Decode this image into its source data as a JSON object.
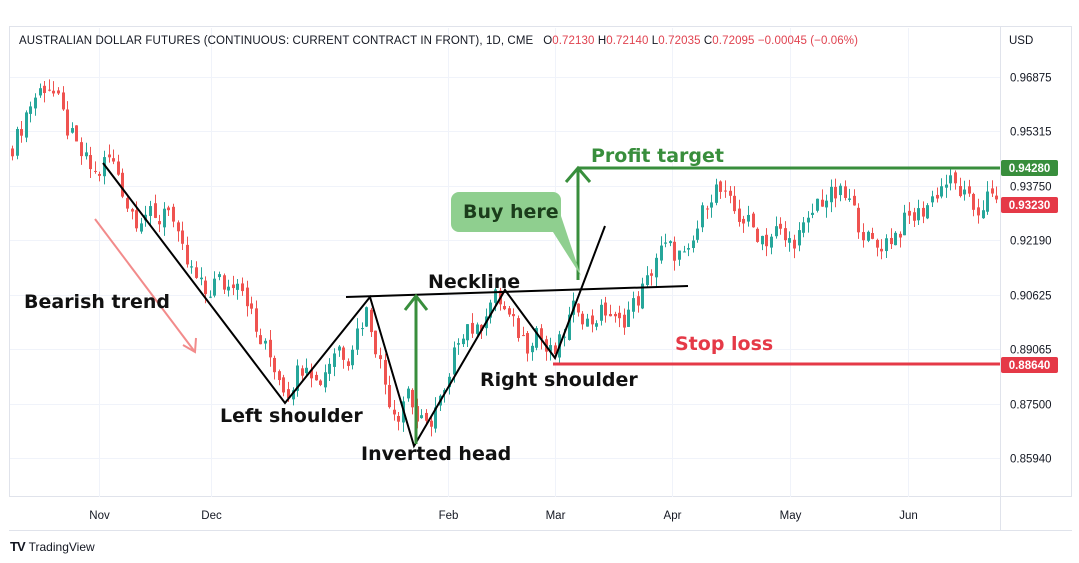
{
  "header": {
    "title": "AUSTRALIAN DOLLAR FUTURES (CONTINUOUS: CURRENT CONTRACT IN FRONT), 1D, CME",
    "o_label": "O",
    "o_value": "0.72130",
    "h_label": "H",
    "h_value": "0.72140",
    "l_label": "L",
    "l_value": "0.72035",
    "c_label": "C",
    "c_value": "0.72095",
    "change": "−0.00045 (−0.06%)",
    "currency": "USD"
  },
  "brand": {
    "logo": "TV",
    "name": "TradingView"
  },
  "colors": {
    "up": "#26a69a",
    "down": "#ef5350",
    "green": "#388e3c",
    "red": "#e53947",
    "line": "#000000",
    "bubble": "#8fcf8f",
    "arrow": "#f28b8b"
  },
  "chart_data": {
    "type": "candlestick",
    "y_axis": {
      "ticks": [
        "0.96875",
        "0.95315",
        "0.93750",
        "0.92190",
        "0.90625",
        "0.89065",
        "0.87500",
        "0.85940"
      ],
      "range": [
        0.851,
        0.9725
      ]
    },
    "x_axis": {
      "ticks": [
        "Nov",
        "Dec",
        "Feb",
        "Mar",
        "Apr",
        "May",
        "Jun"
      ]
    },
    "price_labels": [
      {
        "value": 0.9428,
        "text": "0.94280",
        "color": "green"
      },
      {
        "value": 0.9323,
        "text": "0.93230",
        "color": "red"
      },
      {
        "value": 0.8864,
        "text": "0.88640",
        "color": "red"
      }
    ],
    "close_path": [
      [
        0,
        0.938
      ],
      [
        8,
        0.947
      ],
      [
        18,
        0.952
      ],
      [
        28,
        0.96
      ],
      [
        37,
        0.964
      ],
      [
        47,
        0.967
      ],
      [
        57,
        0.962
      ],
      [
        67,
        0.954
      ],
      [
        77,
        0.948
      ],
      [
        87,
        0.944
      ],
      [
        97,
        0.94
      ],
      [
        107,
        0.946
      ],
      [
        117,
        0.942
      ],
      [
        127,
        0.932
      ],
      [
        137,
        0.928
      ],
      [
        147,
        0.93
      ],
      [
        157,
        0.926
      ],
      [
        167,
        0.934
      ],
      [
        177,
        0.922
      ],
      [
        187,
        0.915
      ],
      [
        197,
        0.91
      ],
      [
        207,
        0.906
      ],
      [
        217,
        0.911
      ],
      [
        227,
        0.908
      ],
      [
        237,
        0.912
      ],
      [
        247,
        0.905
      ],
      [
        257,
        0.894
      ],
      [
        267,
        0.89
      ],
      [
        277,
        0.884
      ],
      [
        287,
        0.878
      ],
      [
        297,
        0.884
      ],
      [
        307,
        0.888
      ],
      [
        317,
        0.88
      ],
      [
        327,
        0.886
      ],
      [
        337,
        0.892
      ],
      [
        347,
        0.888
      ],
      [
        357,
        0.896
      ],
      [
        367,
        0.902
      ],
      [
        377,
        0.89
      ],
      [
        387,
        0.878
      ],
      [
        397,
        0.871
      ],
      [
        407,
        0.88
      ],
      [
        417,
        0.87
      ],
      [
        427,
        0.868
      ],
      [
        437,
        0.875
      ],
      [
        447,
        0.878
      ],
      [
        457,
        0.894
      ],
      [
        467,
        0.898
      ],
      [
        477,
        0.895
      ],
      [
        487,
        0.903
      ],
      [
        497,
        0.906
      ],
      [
        507,
        0.9
      ],
      [
        517,
        0.896
      ],
      [
        527,
        0.892
      ],
      [
        537,
        0.897
      ],
      [
        547,
        0.889
      ],
      [
        557,
        0.89
      ],
      [
        567,
        0.898
      ],
      [
        577,
        0.904
      ],
      [
        587,
        0.898
      ],
      [
        597,
        0.9
      ],
      [
        607,
        0.902
      ],
      [
        617,
        0.897
      ],
      [
        627,
        0.901
      ],
      [
        637,
        0.905
      ],
      [
        647,
        0.91
      ],
      [
        657,
        0.918
      ],
      [
        667,
        0.92
      ],
      [
        677,
        0.918
      ],
      [
        687,
        0.916
      ],
      [
        697,
        0.925
      ],
      [
        707,
        0.934
      ],
      [
        717,
        0.937
      ],
      [
        727,
        0.933
      ],
      [
        737,
        0.929
      ],
      [
        747,
        0.927
      ],
      [
        757,
        0.924
      ],
      [
        767,
        0.922
      ],
      [
        777,
        0.925
      ],
      [
        787,
        0.921
      ],
      [
        797,
        0.923
      ],
      [
        807,
        0.926
      ],
      [
        817,
        0.933
      ],
      [
        827,
        0.934
      ],
      [
        837,
        0.935
      ],
      [
        847,
        0.934
      ],
      [
        857,
        0.928
      ],
      [
        867,
        0.922
      ],
      [
        877,
        0.92
      ],
      [
        887,
        0.922
      ],
      [
        897,
        0.924
      ],
      [
        907,
        0.928
      ],
      [
        917,
        0.929
      ],
      [
        927,
        0.932
      ],
      [
        937,
        0.936
      ],
      [
        947,
        0.939
      ],
      [
        957,
        0.937
      ],
      [
        967,
        0.933
      ],
      [
        977,
        0.93
      ],
      [
        987,
        0.934
      ],
      [
        997,
        0.933
      ]
    ]
  },
  "annotations": {
    "bearish_trend": "Bearish trend",
    "left_shoulder": "Left shoulder",
    "inverted_head": "Inverted head",
    "right_shoulder": "Right shoulder",
    "neckline": "Neckline",
    "buy_here": "Buy here",
    "profit_target": "Profit target",
    "stop_loss": "Stop loss"
  }
}
